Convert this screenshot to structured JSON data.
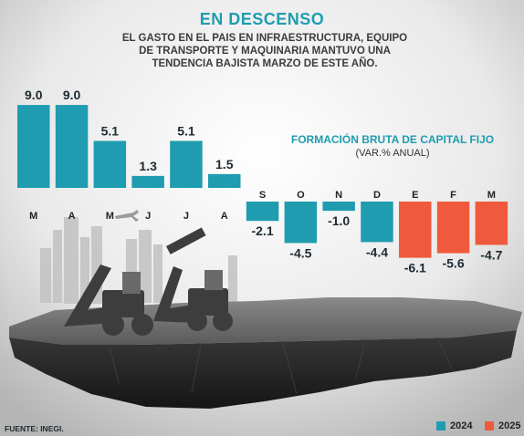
{
  "header": {
    "title": "EN DESCENSO",
    "subtitle_lines": [
      "EL GASTO EN EL PAIS EN INFRAESTRUCTURA, EQUIPO",
      "DE TRANSPORTE Y MAQUINARIA MANTUVO UNA",
      "TENDENCIA BAJISTA MARZO DE ESTE AÑO."
    ]
  },
  "chart_data": {
    "type": "bar",
    "title": "FORMACIÓN BRUTA DE CAPITAL FIJO",
    "unit": "(VAR.% ANUAL)",
    "categories": [
      "M",
      "A",
      "M",
      "J",
      "J",
      "A",
      "S",
      "O",
      "N",
      "D",
      "E",
      "F",
      "M"
    ],
    "values": [
      9.0,
      9.0,
      5.1,
      1.3,
      5.1,
      1.5,
      -2.1,
      -4.5,
      -1.0,
      -4.4,
      -6.1,
      -5.6,
      -4.7
    ],
    "value_labels": [
      "9.0",
      "9.0",
      "5.1",
      "1.3",
      "5.1",
      "1.5",
      "-2.1",
      "-4.5",
      "-1.0",
      "-4.4",
      "-6.1",
      "-5.6",
      "-4.7"
    ],
    "series_year": [
      "2024",
      "2024",
      "2024",
      "2024",
      "2024",
      "2024",
      "2024",
      "2024",
      "2024",
      "2024",
      "2025",
      "2025",
      "2025"
    ],
    "legend": [
      {
        "name": "2024",
        "color": "#1f9cb0"
      },
      {
        "name": "2025",
        "color": "#ef5a3c"
      }
    ],
    "legend_position": "bottom-right",
    "ylim": [
      -6.1,
      9.0
    ],
    "grid": false
  },
  "footer": {
    "source": "FUENTE: INEGI."
  }
}
